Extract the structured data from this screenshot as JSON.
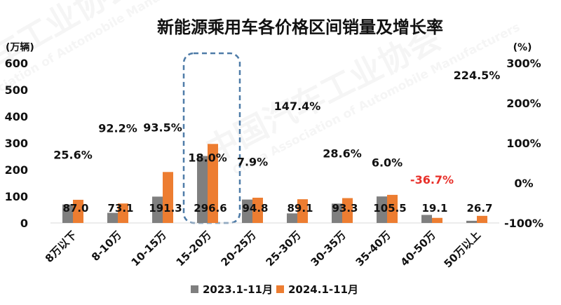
{
  "chart_data": {
    "type": "bar",
    "title": "新能源乘用车各价格区间销量及增长率",
    "ylabel": "(万辆)",
    "y2label": "(%)",
    "ylim": [
      0,
      600
    ],
    "yticks": [
      0,
      100,
      200,
      300,
      400,
      500,
      600
    ],
    "y2lim": [
      -100,
      300
    ],
    "y2ticks": [
      -100,
      0,
      100,
      200,
      300
    ],
    "y2tick_labels": [
      "-100%",
      "0%",
      "100%",
      "200%",
      "300%"
    ],
    "categories": [
      "8万以下",
      "8-10万",
      "10-15万",
      "15-20万",
      "20-25万",
      "25-30万",
      "30-35万",
      "35-40万",
      "40-50万",
      "50万以上"
    ],
    "series": [
      {
        "name": "2023.1-11月",
        "color": "#7F7F7F",
        "values": [
          69.3,
          38.0,
          98.9,
          251.4,
          87.9,
          36.0,
          72.6,
          99.5,
          30.2,
          8.2
        ]
      },
      {
        "name": "2024.1-11月",
        "color": "#ED7D31",
        "values": [
          87.0,
          73.1,
          191.3,
          296.6,
          94.8,
          89.1,
          93.3,
          105.5,
          19.1,
          26.7
        ],
        "labels": [
          "87.0",
          "73.1",
          "191.3",
          "296.6",
          "94.8",
          "89.1",
          "93.3",
          "105.5",
          "19.1",
          "26.7"
        ]
      }
    ],
    "growth_rate": {
      "values": [
        25.6,
        92.2,
        93.5,
        18.0,
        7.9,
        147.4,
        28.6,
        6.0,
        -36.7,
        224.5
      ],
      "labels": [
        "25.6%",
        "92.2%",
        "93.5%",
        "18.0%",
        "7.9%",
        "147.4%",
        "28.6%",
        "6.0%",
        "-36.7%",
        "224.5%"
      ],
      "label_color": "#111111",
      "negative_label_color": "#E8302A"
    },
    "highlight_index": 3,
    "highlight_color": "#4F7CA8",
    "grid": false,
    "legend": "bottom"
  },
  "watermark": {
    "cn": "中国汽车工业协会",
    "en": "China Association of Automobile Manufacturers"
  }
}
